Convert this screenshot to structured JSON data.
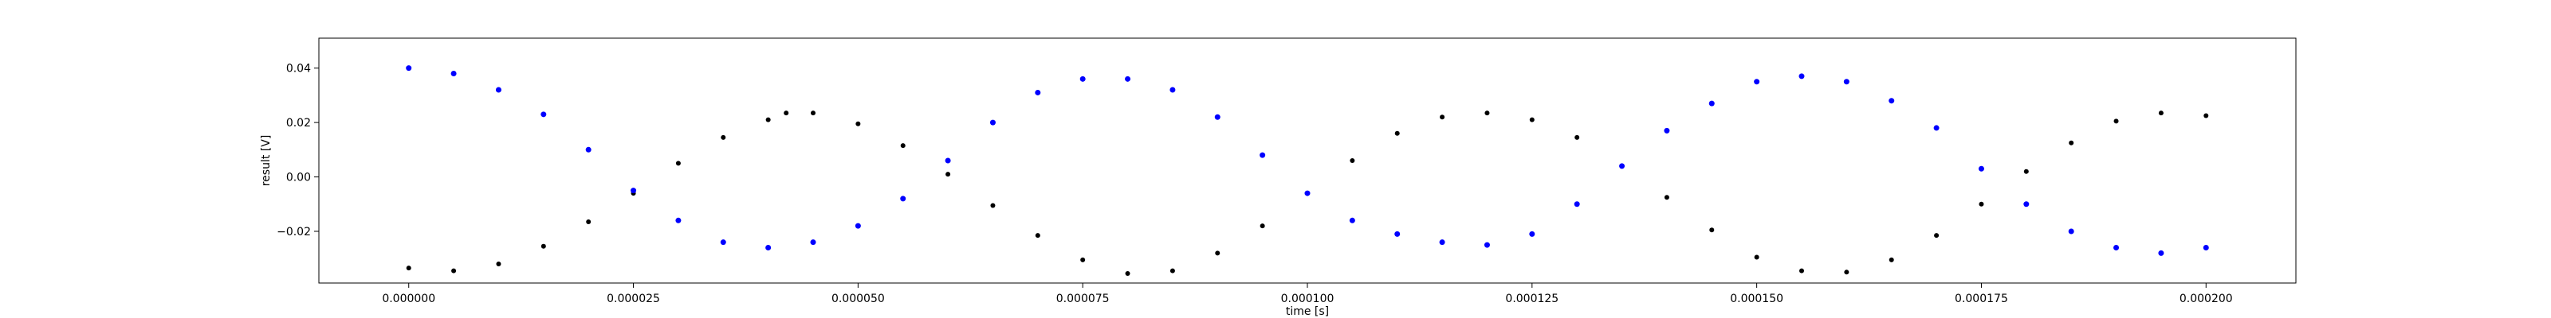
{
  "chart_data": {
    "type": "scatter",
    "title": "",
    "xlabel": "time [s]",
    "ylabel": "result [V]",
    "xlim": [
      -1e-05,
      0.00021
    ],
    "ylim": [
      -0.039,
      0.051
    ],
    "grid": false,
    "legend": "none",
    "x_ticks": [
      {
        "value": 0.0,
        "label": "0.000000"
      },
      {
        "value": 2.5e-05,
        "label": "0.000025"
      },
      {
        "value": 5e-05,
        "label": "0.000050"
      },
      {
        "value": 7.5e-05,
        "label": "0.000075"
      },
      {
        "value": 0.0001,
        "label": "0.000100"
      },
      {
        "value": 0.000125,
        "label": "0.000125"
      },
      {
        "value": 0.00015,
        "label": "0.000150"
      },
      {
        "value": 0.000175,
        "label": "0.000175"
      },
      {
        "value": 0.0002,
        "label": "0.000200"
      }
    ],
    "y_ticks": [
      {
        "value": -0.02,
        "label": "−0.02"
      },
      {
        "value": 0.0,
        "label": "0.00"
      },
      {
        "value": 0.02,
        "label": "0.02"
      },
      {
        "value": 0.04,
        "label": "0.04"
      }
    ],
    "series": [
      {
        "color": "#000000",
        "marker": "dot",
        "x": [
          0.0,
          5e-06,
          1e-05,
          1.5e-05,
          2e-05,
          2.5e-05,
          3e-05,
          3.5e-05,
          4e-05,
          4.2e-05,
          4.5e-05,
          5e-05,
          5.5e-05,
          6e-05,
          6.5e-05,
          7e-05,
          7.5e-05,
          8e-05,
          8.5e-05,
          9e-05,
          9.5e-05,
          0.0001,
          0.000105,
          0.00011,
          0.000115,
          0.00012,
          0.000125,
          0.00013,
          0.000135,
          0.00014,
          0.000145,
          0.00015,
          0.000155,
          0.00016,
          0.000165,
          0.00017,
          0.000175,
          0.00018,
          0.000185,
          0.00019,
          0.000195,
          0.0002
        ],
        "y": [
          -0.0335,
          -0.0345,
          -0.032,
          -0.0255,
          -0.0165,
          -0.006,
          0.005,
          0.0145,
          0.021,
          0.0235,
          0.0235,
          0.0195,
          0.0115,
          0.001,
          -0.0105,
          -0.0215,
          -0.0305,
          -0.0355,
          -0.0345,
          -0.028,
          -0.018,
          -0.006,
          0.006,
          0.016,
          0.022,
          0.0235,
          0.021,
          0.0145,
          0.004,
          -0.0075,
          -0.0195,
          -0.0295,
          -0.0345,
          -0.035,
          -0.0305,
          -0.0215,
          -0.01,
          0.002,
          0.0125,
          0.0205,
          0.0235,
          0.0225
        ]
      },
      {
        "color": "#0000ff",
        "marker": "dot",
        "x": [
          0.0,
          5e-06,
          1e-05,
          1.5e-05,
          2e-05,
          2.5e-05,
          3e-05,
          3.5e-05,
          4e-05,
          4.5e-05,
          5e-05,
          5.5e-05,
          6e-05,
          6.5e-05,
          7e-05,
          7.5e-05,
          8e-05,
          8.5e-05,
          9e-05,
          9.5e-05,
          0.0001,
          0.000105,
          0.00011,
          0.000115,
          0.00012,
          0.000125,
          0.00013,
          0.000135,
          0.00014,
          0.000145,
          0.00015,
          0.000155,
          0.00016,
          0.000165,
          0.00017,
          0.000175,
          0.00018,
          0.000185,
          0.00019,
          0.000195,
          0.0002
        ],
        "y": [
          0.04,
          0.038,
          0.032,
          0.023,
          0.01,
          -0.005,
          -0.016,
          -0.024,
          -0.026,
          -0.024,
          -0.018,
          -0.008,
          0.006,
          0.02,
          0.031,
          0.036,
          0.036,
          0.032,
          0.022,
          0.008,
          -0.006,
          -0.016,
          -0.021,
          -0.024,
          -0.025,
          -0.021,
          -0.01,
          0.004,
          0.017,
          0.027,
          0.035,
          0.037,
          0.035,
          0.028,
          0.018,
          0.003,
          -0.01,
          -0.02,
          -0.026,
          -0.028,
          -0.026
        ]
      }
    ]
  }
}
